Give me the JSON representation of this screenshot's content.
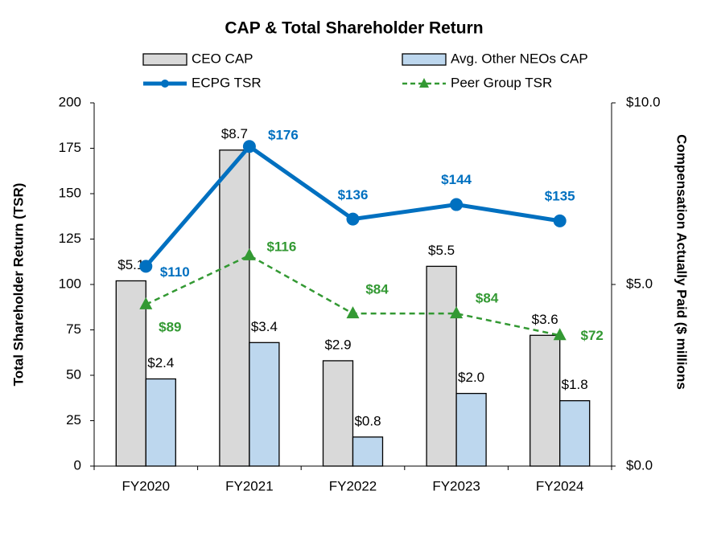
{
  "chart_data": {
    "type": "bar",
    "title": "CAP & Total Shareholder Return",
    "y_label": "Total Shareholder Return (TSR)",
    "y2_label": "Compensation Actually Paid ($ millions",
    "categories": [
      "FY2020",
      "FY2021",
      "FY2022",
      "FY2023",
      "FY2024"
    ],
    "ylim": [
      0,
      200
    ],
    "yticks": [
      0,
      25,
      50,
      75,
      100,
      125,
      150,
      175,
      200
    ],
    "y2lim": [
      0,
      10
    ],
    "y2ticks": [
      {
        "value": 0,
        "label": "$0.0"
      },
      {
        "value": 5,
        "label": "$5.0"
      },
      {
        "value": 10,
        "label": "$10.0"
      }
    ],
    "grid": false,
    "series": [
      {
        "name": "CEO CAP",
        "type": "bar",
        "axis": "y2",
        "color": "#d9d9d9",
        "values": [
          5.1,
          8.7,
          2.9,
          5.5,
          3.6
        ],
        "value_labels": [
          "$5.1",
          "$8.7",
          "$2.9",
          "$5.5",
          "$3.6"
        ]
      },
      {
        "name": "Avg. Other NEOs CAP",
        "type": "bar",
        "axis": "y2",
        "color": "#bdd7ee",
        "values": [
          2.4,
          3.4,
          0.8,
          2.0,
          1.8
        ],
        "value_labels": [
          "$2.4",
          "$3.4",
          "$0.8",
          "$2.0",
          "$1.8"
        ]
      },
      {
        "name": "ECPG TSR",
        "type": "line",
        "color": "#0070c0",
        "values": [
          110,
          176,
          136,
          144,
          135
        ],
        "value_labels": [
          "$110",
          "$176",
          "$136",
          "$144",
          "$135"
        ]
      },
      {
        "name": "Peer Group TSR",
        "type": "line",
        "color": "#339933",
        "dashed": true,
        "values": [
          89,
          116,
          84,
          84,
          72
        ],
        "value_labels": [
          "$89",
          "$116",
          "$84",
          "$84",
          "$72"
        ]
      }
    ]
  }
}
